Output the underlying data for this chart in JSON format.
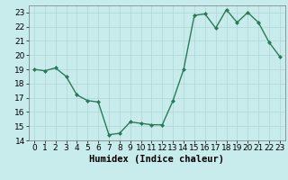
{
  "x": [
    0,
    1,
    2,
    3,
    4,
    5,
    6,
    7,
    8,
    9,
    10,
    11,
    12,
    13,
    14,
    15,
    16,
    17,
    18,
    19,
    20,
    21,
    22,
    23
  ],
  "y": [
    19,
    18.9,
    19.1,
    18.5,
    17.2,
    16.8,
    16.7,
    14.4,
    14.5,
    15.3,
    15.2,
    15.1,
    15.1,
    16.8,
    19.0,
    22.8,
    22.9,
    21.9,
    23.2,
    22.3,
    23.0,
    22.3,
    20.9,
    19.9
  ],
  "line_color": "#2a7a5a",
  "marker": "D",
  "markersize": 2.0,
  "linewidth": 1.0,
  "bg_color": "#c8ecec",
  "grid_color": "#b0d4d4",
  "xlabel": "Humidex (Indice chaleur)",
  "xlabel_fontsize": 7.5,
  "tick_fontsize": 6.5,
  "xlim": [
    -0.5,
    23.5
  ],
  "ylim": [
    14,
    23.5
  ],
  "yticks": [
    14,
    15,
    16,
    17,
    18,
    19,
    20,
    21,
    22,
    23
  ],
  "xticks": [
    0,
    1,
    2,
    3,
    4,
    5,
    6,
    7,
    8,
    9,
    10,
    11,
    12,
    13,
    14,
    15,
    16,
    17,
    18,
    19,
    20,
    21,
    22,
    23
  ]
}
